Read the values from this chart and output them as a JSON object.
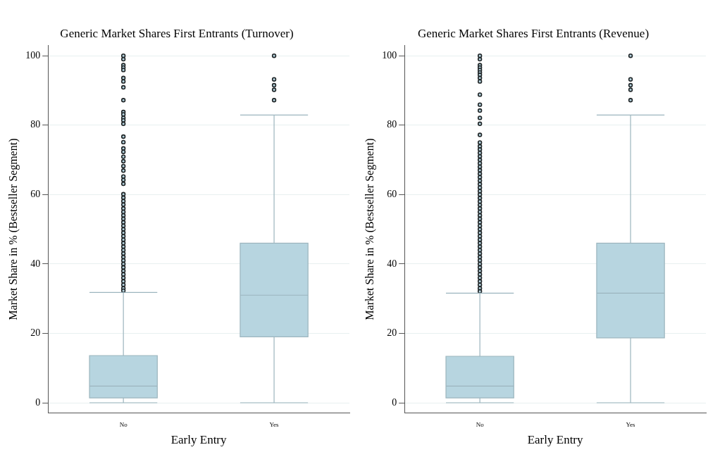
{
  "chart_data": [
    {
      "type": "box",
      "title": "Generic Market Shares First Entrants (Turnover)",
      "xlabel": "Early Entry",
      "ylabel": "Market Share in % (Bestseller Segment)",
      "categories": [
        "No",
        "Yes"
      ],
      "ylim": [
        -3,
        103
      ],
      "yticks": [
        0,
        20,
        40,
        60,
        80,
        100
      ],
      "grid": "y",
      "series": [
        {
          "color": "#b7d5e0",
          "boxes": [
            {
              "low": 0,
              "q1": 1.4,
              "median": 4.8,
              "q3": 13.6,
              "high": 31.8,
              "outliers": [
                100,
                99,
                97.3,
                96.6,
                95.9,
                93.6,
                92.6,
                90.9,
                87.2,
                83.8,
                83.1,
                82.1,
                81.4,
                80.4,
                76.7,
                75.1,
                73.3,
                72.3,
                70.9,
                69.6,
                68.2,
                66.9,
                65.2,
                64.2,
                63.1,
                60.1,
                59.1,
                58.1,
                57.1,
                56,
                55,
                54,
                53,
                52,
                51,
                50,
                49,
                48,
                47,
                46,
                45,
                44,
                43,
                42,
                41,
                40,
                39,
                38,
                37,
                36,
                35,
                34,
                33,
                32.3
              ]
            },
            {
              "low": 0,
              "q1": 19,
              "median": 31,
              "q3": 46,
              "high": 82.9,
              "outliers": [
                100,
                93.2,
                91.5,
                90.2,
                87.2
              ]
            }
          ]
        }
      ]
    },
    {
      "type": "box",
      "title": "Generic Market Shares First Entrants (Revenue)",
      "xlabel": "Early Entry",
      "ylabel": "Market Share in % (Bestseller Segment)",
      "categories": [
        "No",
        "Yes"
      ],
      "ylim": [
        -3,
        103
      ],
      "yticks": [
        0,
        20,
        40,
        60,
        80,
        100
      ],
      "grid": "y",
      "series": [
        {
          "color": "#b7d5e0",
          "boxes": [
            {
              "low": 0,
              "q1": 1.4,
              "median": 4.8,
              "q3": 13.4,
              "high": 31.6,
              "outliers": [
                100,
                99,
                97.3,
                96.6,
                95.9,
                95.2,
                94.5,
                93.6,
                92.6,
                88.8,
                85.9,
                84.2,
                82.1,
                80.4,
                77.2,
                75,
                73.9,
                73,
                72,
                71,
                70,
                69,
                68,
                67,
                66,
                65,
                64,
                63,
                62,
                61,
                60,
                59,
                58,
                57,
                56,
                55,
                54,
                53,
                52,
                51,
                50,
                49,
                48,
                47,
                46,
                45,
                44,
                43,
                42,
                41,
                40,
                39,
                38,
                37,
                36,
                35,
                34,
                33,
                32.1
              ]
            },
            {
              "low": 0,
              "q1": 18.7,
              "median": 31.6,
              "q3": 46,
              "high": 82.9,
              "outliers": [
                100,
                93.2,
                91.5,
                90.2,
                87.2
              ]
            }
          ]
        }
      ]
    }
  ]
}
